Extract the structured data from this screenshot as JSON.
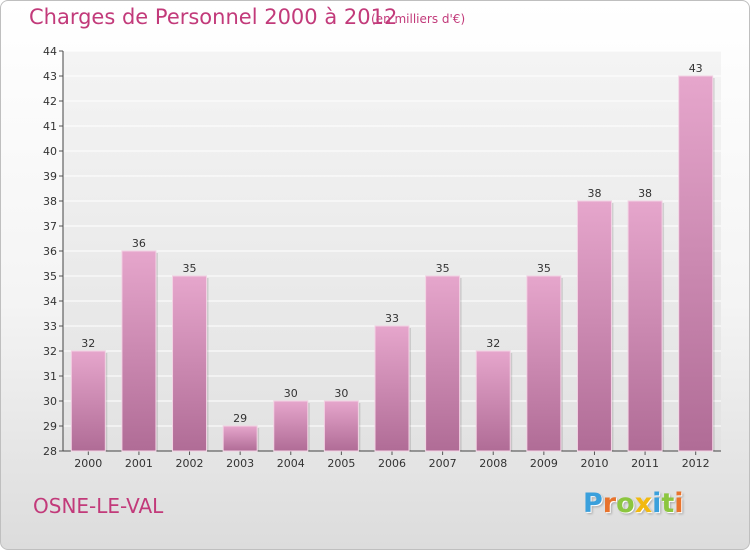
{
  "chart_data": {
    "type": "bar",
    "title": "Charges de Personnel 2000 à 2012",
    "subtitle": "(en milliers d'€)",
    "categories": [
      "2000",
      "2001",
      "2002",
      "2003",
      "2004",
      "2005",
      "2006",
      "2007",
      "2008",
      "2009",
      "2010",
      "2011",
      "2012"
    ],
    "values": [
      32,
      36,
      35,
      29,
      30,
      30,
      33,
      35,
      32,
      35,
      38,
      38,
      43
    ],
    "ylim": [
      28,
      44
    ],
    "yticks": [
      28,
      29,
      30,
      31,
      32,
      33,
      34,
      35,
      36,
      37,
      38,
      39,
      40,
      41,
      42,
      43,
      44
    ],
    "grid": true,
    "bar_color": "#d98fb8"
  },
  "commune": "OSNE-LE-VAL",
  "logo": {
    "letters": [
      {
        "char": "P",
        "color": "#3aa0dc"
      },
      {
        "char": "r",
        "color": "#e8732c"
      },
      {
        "char": "o",
        "color": "#8cc63f"
      },
      {
        "char": "x",
        "color": "#f2b90f"
      },
      {
        "char": "i",
        "color": "#3aa0dc"
      },
      {
        "char": "t",
        "color": "#8cc63f"
      },
      {
        "char": "i",
        "color": "#e8732c"
      }
    ]
  }
}
